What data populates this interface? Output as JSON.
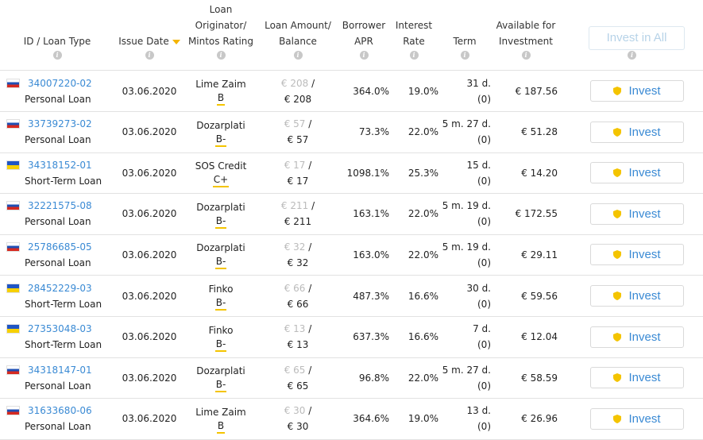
{
  "header": {
    "id_type": "ID / Loan Type",
    "issue_date": "Issue Date",
    "originator_l1": "Loan",
    "originator_l2": "Originator/",
    "originator_l3": "Mintos Rating",
    "amount_l1": "Loan Amount/",
    "amount_l2": "Balance",
    "apr_l1": "Borrower",
    "apr_l2": "APR",
    "interest_l1": "Interest",
    "interest_l2": "Rate",
    "term": "Term",
    "available_l1": "Available for",
    "available_l2": "Investment",
    "invest_all": "Invest in All"
  },
  "invest_label": "Invest",
  "colors": {
    "link": "#3a8ad4",
    "rating_underline": "#f4c400",
    "sort_arrow": "#f4b400",
    "shield": "#f4c400"
  },
  "rows": [
    {
      "flag": "ru",
      "id": "34007220-02",
      "type": "Personal Loan",
      "date": "03.06.2020",
      "originator": "Lime Zaim",
      "rating": "B",
      "amount": "€ 208",
      "amount_sep": "/",
      "balance": "€ 208",
      "apr": "364.0%",
      "interest": "19.0%",
      "term": "31 d.",
      "term_sub": "(0)",
      "available": "€ 187.56"
    },
    {
      "flag": "ru",
      "id": "33739273-02",
      "type": "Personal Loan",
      "date": "03.06.2020",
      "originator": "Dozarplati",
      "rating": "B-",
      "amount": "€ 57",
      "amount_sep": "/",
      "balance": "€ 57",
      "apr": "73.3%",
      "interest": "22.0%",
      "term": "5 m. 27 d.",
      "term_sub": "(0)",
      "available": "€ 51.28"
    },
    {
      "flag": "ua",
      "id": "34318152-01",
      "type": "Short-Term Loan",
      "date": "03.06.2020",
      "originator": "SOS Credit",
      "rating": "C+",
      "amount": "€ 17",
      "amount_sep": "/",
      "balance": "€ 17",
      "apr": "1098.1%",
      "interest": "25.3%",
      "term": "15 d.",
      "term_sub": "(0)",
      "available": "€ 14.20"
    },
    {
      "flag": "ru",
      "id": "32221575-08",
      "type": "Personal Loan",
      "date": "03.06.2020",
      "originator": "Dozarplati",
      "rating": "B-",
      "amount": "€ 211",
      "amount_sep": "/",
      "balance": "€ 211",
      "apr": "163.1%",
      "interest": "22.0%",
      "term": "5 m. 19 d.",
      "term_sub": "(0)",
      "available": "€ 172.55"
    },
    {
      "flag": "ru",
      "id": "25786685-05",
      "type": "Personal Loan",
      "date": "03.06.2020",
      "originator": "Dozarplati",
      "rating": "B-",
      "amount": "€ 32",
      "amount_sep": "/",
      "balance": "€ 32",
      "apr": "163.0%",
      "interest": "22.0%",
      "term": "5 m. 19 d.",
      "term_sub": "(0)",
      "available": "€ 29.11"
    },
    {
      "flag": "ua",
      "id": "28452229-03",
      "type": "Short-Term Loan",
      "date": "03.06.2020",
      "originator": "Finko",
      "rating": "B-",
      "amount": "€ 66",
      "amount_sep": "/",
      "balance": "€ 66",
      "apr": "487.3%",
      "interest": "16.6%",
      "term": "30 d.",
      "term_sub": "(0)",
      "available": "€ 59.56"
    },
    {
      "flag": "ua",
      "id": "27353048-03",
      "type": "Short-Term Loan",
      "date": "03.06.2020",
      "originator": "Finko",
      "rating": "B-",
      "amount": "€ 13",
      "amount_sep": "/",
      "balance": "€ 13",
      "apr": "637.3%",
      "interest": "16.6%",
      "term": "7 d.",
      "term_sub": "(0)",
      "available": "€ 12.04"
    },
    {
      "flag": "ru",
      "id": "34318147-01",
      "type": "Personal Loan",
      "date": "03.06.2020",
      "originator": "Dozarplati",
      "rating": "B-",
      "amount": "€ 65",
      "amount_sep": "/",
      "balance": "€ 65",
      "apr": "96.8%",
      "interest": "22.0%",
      "term": "5 m. 27 d.",
      "term_sub": "(0)",
      "available": "€ 58.59"
    },
    {
      "flag": "ru",
      "id": "31633680-06",
      "type": "Personal Loan",
      "date": "03.06.2020",
      "originator": "Lime Zaim",
      "rating": "B",
      "amount": "€ 30",
      "amount_sep": "/",
      "balance": "€ 30",
      "apr": "364.6%",
      "interest": "19.0%",
      "term": "13 d.",
      "term_sub": "(0)",
      "available": "€ 26.96"
    }
  ]
}
